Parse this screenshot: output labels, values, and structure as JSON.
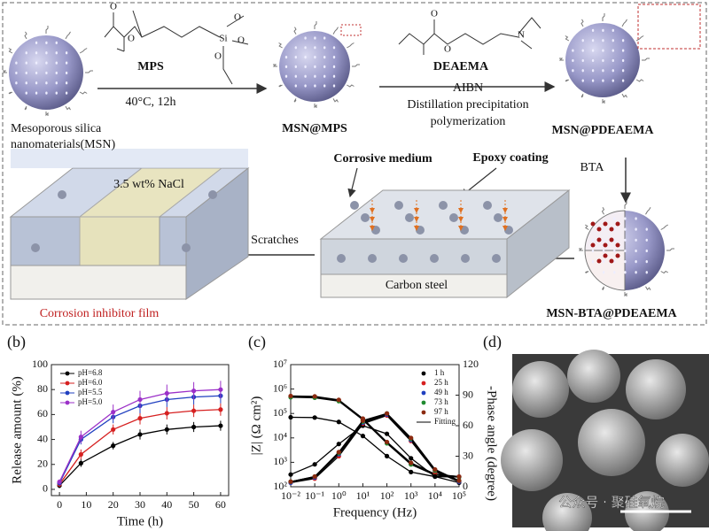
{
  "schematic": {
    "mps": "MPS",
    "mps_conditions": "40°C, 12h",
    "msn_line1": "Mesoporous silica",
    "msn_line2": "nanomaterials(MSN)",
    "msn_mps": "MSN@MPS",
    "deaema": "DEAEMA",
    "aibn": "AIBN",
    "dpp_line1": "Distillation precipitation",
    "dpp_line2": "polymerization",
    "msn_pdeaema": "MSN@PDEAEMA",
    "bta": "BTA",
    "corrosive": "Corrosive medium",
    "epoxy": "Epoxy coating",
    "nacl": "3.5 wt% NaCl",
    "scratches": "Scratches",
    "steel": "Carbon steel",
    "film": "Corrosion inhibitor film",
    "final": "MSN-BTA@PDEAEMA",
    "mps_atoms": [
      "O",
      "O",
      "Si",
      "O",
      "O",
      "O"
    ],
    "deaema_atoms": [
      "O",
      "O",
      "N"
    ]
  },
  "chart_data": [
    {
      "type": "line",
      "panel_label": "(b)",
      "xlabel": "Time (h)",
      "ylabel": "Release amount (%)",
      "x": [
        0,
        8,
        20,
        30,
        40,
        50,
        60
      ],
      "xlim": [
        -3,
        63
      ],
      "xticks": [
        0,
        10,
        20,
        30,
        40,
        50,
        60
      ],
      "ylim": [
        -5,
        100
      ],
      "yticks": [
        0,
        20,
        40,
        60,
        80,
        100
      ],
      "legend": "upper left",
      "series": [
        {
          "name": "pH=6.8",
          "color": "#000000",
          "values": [
            3,
            21,
            35,
            44,
            48,
            50,
            51
          ],
          "errors": [
            2,
            3,
            3,
            4,
            4,
            4,
            4
          ]
        },
        {
          "name": "pH=6.0",
          "color": "#d62020",
          "values": [
            4,
            28,
            48,
            57,
            61,
            63,
            64
          ],
          "errors": [
            2,
            4,
            4,
            5,
            5,
            5,
            5
          ]
        },
        {
          "name": "pH=5.5",
          "color": "#2040c0",
          "values": [
            5,
            40,
            58,
            67,
            72,
            74,
            75
          ],
          "errors": [
            2,
            4,
            5,
            6,
            6,
            6,
            6
          ]
        },
        {
          "name": "pH=5.0",
          "color": "#9b30c8",
          "values": [
            6,
            42,
            62,
            72,
            77,
            79,
            80
          ],
          "errors": [
            2,
            5,
            6,
            7,
            7,
            7,
            7
          ]
        }
      ]
    },
    {
      "type": "line",
      "panel_label": "(c)",
      "xlabel": "Frequency (Hz)",
      "ylabel": "|Z| (Ω cm²)",
      "y2label": "-Phase angle (degree)",
      "xscale": "log",
      "yscale": "log",
      "markers_only": true,
      "legend": "upper right",
      "fit_line": {
        "label": "Fitting",
        "color": "#000000"
      },
      "x": [
        0.01,
        0.1,
        1,
        10,
        100,
        1000,
        10000,
        100000
      ],
      "xlim": [
        0.01,
        100000
      ],
      "xticks": [
        {
          "value": 0.01,
          "label": "10⁻²"
        },
        {
          "value": 0.1,
          "label": "10⁻¹"
        },
        {
          "value": 1,
          "label": "10⁰"
        },
        {
          "value": 10,
          "label": "10¹"
        },
        {
          "value": 100,
          "label": "10²"
        },
        {
          "value": 1000,
          "label": "10³"
        },
        {
          "value": 10000,
          "label": "10⁴"
        },
        {
          "value": 100000,
          "label": "10⁵"
        }
      ],
      "ylim": [
        100,
        10000000
      ],
      "yticks": [
        {
          "value": 100,
          "label": "10²"
        },
        {
          "value": 1000,
          "label": "10³"
        },
        {
          "value": 10000,
          "label": "10⁴"
        },
        {
          "value": 100000,
          "label": "10⁵"
        },
        {
          "value": 1000000,
          "label": "10⁶"
        },
        {
          "value": 10000000,
          "label": "10⁷"
        }
      ],
      "y2lim": [
        0,
        120
      ],
      "y2ticks": [
        0,
        30,
        60,
        90,
        120
      ],
      "series": [
        {
          "name": "1 h",
          "color": "#000000",
          "values": [
            70000,
            68000,
            45000,
            12000,
            1800,
            400,
            260,
            250
          ]
        },
        {
          "name": "25 h",
          "color": "#d62020",
          "values": [
            500000,
            480000,
            350000,
            60000,
            6500,
            900,
            320,
            260
          ]
        },
        {
          "name": "49 h",
          "color": "#2040c0",
          "values": [
            480000,
            460000,
            330000,
            58000,
            6200,
            850,
            310,
            255
          ]
        },
        {
          "name": "73 h",
          "color": "#208a30",
          "values": [
            460000,
            440000,
            320000,
            55000,
            6000,
            820,
            300,
            250
          ]
        },
        {
          "name": "97 h",
          "color": "#8b2a10",
          "values": [
            520000,
            500000,
            360000,
            62000,
            6800,
            950,
            330,
            260
          ]
        },
        {
          "color": "#000000",
          "axis": "y2",
          "values": [
            12,
            22,
            42,
            60,
            52,
            28,
            10,
            4
          ]
        },
        {
          "color": "#d62020",
          "axis": "y2",
          "values": [
            4,
            8,
            30,
            62,
            70,
            45,
            15,
            5
          ]
        },
        {
          "color": "#2040c0",
          "axis": "y2",
          "values": [
            4,
            9,
            32,
            63,
            71,
            46,
            16,
            5
          ]
        },
        {
          "color": "#208a30",
          "axis": "y2",
          "values": [
            5,
            10,
            33,
            64,
            72,
            47,
            16,
            6
          ]
        },
        {
          "color": "#8b2a10",
          "axis": "y2",
          "values": [
            5,
            10,
            34,
            65,
            72,
            48,
            17,
            6
          ]
        }
      ]
    }
  ],
  "panel_d": {
    "label": "(d)",
    "watermark": "公众号 · 聚硅氧烷"
  }
}
